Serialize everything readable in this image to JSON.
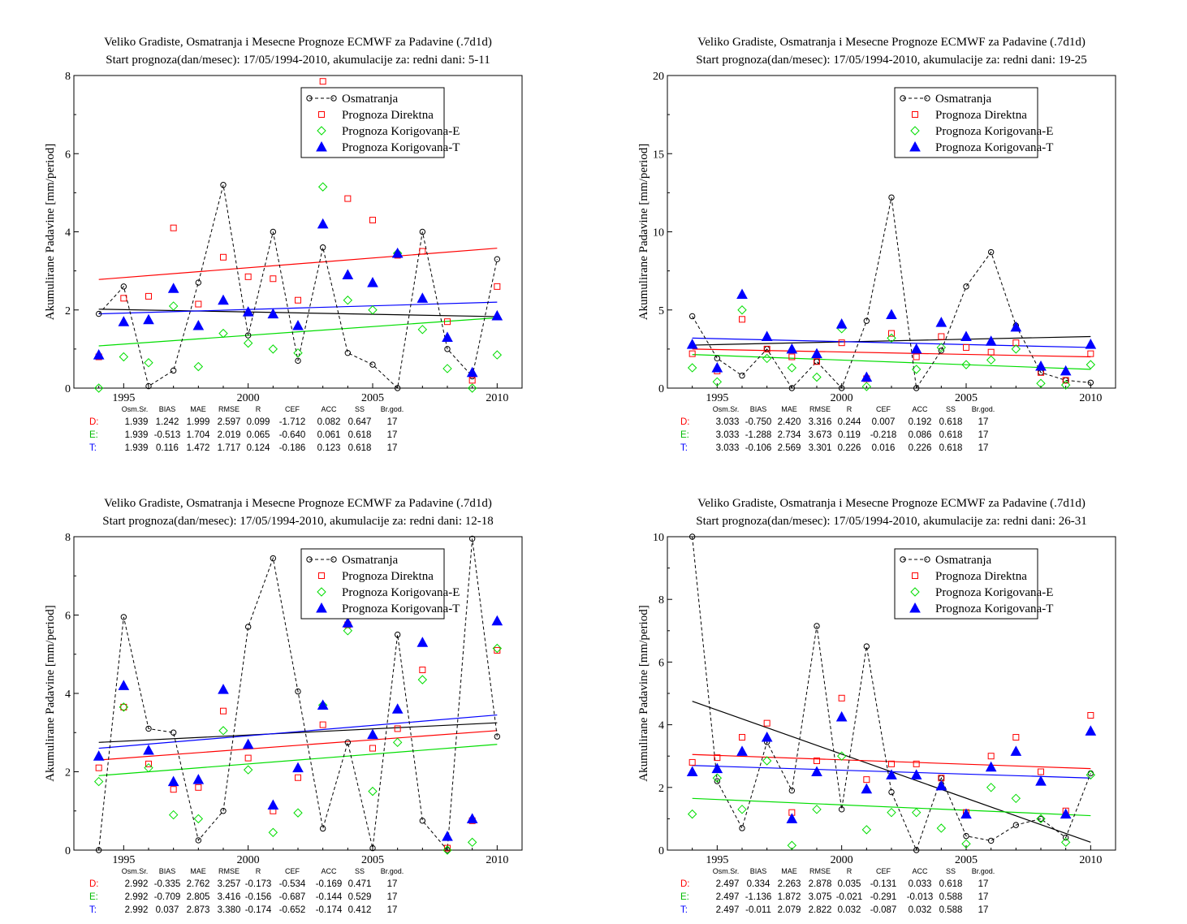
{
  "chart_data": [
    {
      "type": "line",
      "title": "Veliko Gradiste, Osmatranja i Mesecne Prognoze ECMWF za Padavine (.7d1d)",
      "subtitle": "Start prognoza(dan/mesec): 17/05/1994-2010, akumulacije za: redni dani: 5-11",
      "ylabel": "Akumulirane Padavine [mm/period]",
      "xlim": [
        1993,
        2011
      ],
      "ylim": [
        0,
        8
      ],
      "xticks": [
        1995,
        2000,
        2005,
        2010
      ],
      "yticks": [
        0,
        2,
        4,
        6,
        8
      ],
      "x": [
        1994,
        1995,
        1996,
        1997,
        1998,
        1999,
        2000,
        2001,
        2002,
        2003,
        2004,
        2005,
        2006,
        2007,
        2008,
        2009,
        2010
      ],
      "legend_position": "top-right",
      "series": [
        {
          "name": "Osmatranja",
          "marker": "circle",
          "color": "#000000",
          "values": [
            1.9,
            2.6,
            0.05,
            0.45,
            2.7,
            5.2,
            1.35,
            4.0,
            0.7,
            3.6,
            0.9,
            0.6,
            0.0,
            4.0,
            1.0,
            0.3,
            3.3
          ],
          "trend": [
            2.02,
            1.83
          ]
        },
        {
          "name": "Prognoza Direktna",
          "marker": "square",
          "color": "#ff0000",
          "values": [
            0.8,
            2.3,
            2.35,
            4.1,
            2.15,
            3.35,
            2.85,
            2.8,
            2.25,
            7.85,
            4.85,
            4.3,
            3.4,
            3.5,
            1.7,
            0.2,
            2.6
          ],
          "trend": [
            2.78,
            3.58
          ]
        },
        {
          "name": "Prognoza Korigovana-E",
          "marker": "diamond",
          "color": "#00dd00",
          "values": [
            0.0,
            0.8,
            0.65,
            2.1,
            0.55,
            1.4,
            1.15,
            1.0,
            0.9,
            5.15,
            2.25,
            2.0,
            3.45,
            1.5,
            0.5,
            0.0,
            0.85
          ],
          "trend": [
            1.08,
            1.8
          ]
        },
        {
          "name": "Prognoza Korigovana-T",
          "marker": "triangle",
          "color": "#0000ff",
          "values": [
            0.85,
            1.7,
            1.75,
            2.55,
            1.6,
            2.25,
            1.95,
            1.9,
            1.6,
            4.2,
            2.9,
            2.7,
            3.45,
            2.3,
            1.3,
            0.4,
            1.85
          ],
          "trend": [
            1.9,
            2.2
          ]
        }
      ],
      "stats": {
        "header": [
          "Osm.Sr.",
          "BIAS",
          "MAE",
          "RMSE",
          "R",
          "CEF",
          "ACC",
          "SS",
          "Br.god."
        ],
        "rows": [
          {
            "label": "D:",
            "color": "#ff0000",
            "values": [
              "1.939",
              "1.242",
              "1.999",
              "2.597",
              "0.099",
              "-1.712",
              "0.082",
              "0.647",
              "17"
            ]
          },
          {
            "label": "E:",
            "color": "#00bb00",
            "values": [
              "1.939",
              "-0.513",
              "1.704",
              "2.019",
              "0.065",
              "-0.640",
              "0.061",
              "0.618",
              "17"
            ]
          },
          {
            "label": "T:",
            "color": "#0000ff",
            "values": [
              "1.939",
              "0.116",
              "1.472",
              "1.717",
              "0.124",
              "-0.186",
              "0.123",
              "0.618",
              "17"
            ]
          }
        ]
      }
    },
    {
      "type": "line",
      "title": "Veliko Gradiste, Osmatranja i Mesecne Prognoze ECMWF za Padavine (.7d1d)",
      "subtitle": "Start prognoza(dan/mesec): 17/05/1994-2010, akumulacije za: redni dani: 19-25",
      "ylabel": "Akumulirane Padavine [mm/period]",
      "xlim": [
        1993,
        2011
      ],
      "ylim": [
        0,
        20
      ],
      "xticks": [
        1995,
        2000,
        2005,
        2010
      ],
      "yticks": [
        0,
        5,
        10,
        15,
        20
      ],
      "x": [
        1994,
        1995,
        1996,
        1997,
        1998,
        1999,
        2000,
        2001,
        2002,
        2003,
        2004,
        2005,
        2006,
        2007,
        2008,
        2009,
        2010
      ],
      "legend_position": "top-right",
      "series": [
        {
          "name": "Osmatranja",
          "marker": "circle",
          "color": "#000000",
          "values": [
            4.6,
            1.9,
            0.8,
            2.5,
            0.0,
            1.7,
            0.0,
            4.3,
            12.2,
            0.0,
            2.4,
            6.5,
            8.7,
            4.0,
            1.0,
            0.5,
            0.35
          ],
          "trend": [
            2.75,
            3.3
          ]
        },
        {
          "name": "Prognoza Direktna",
          "marker": "square",
          "color": "#ff0000",
          "values": [
            2.2,
            1.1,
            4.4,
            2.5,
            2.0,
            1.7,
            2.9,
            0.6,
            3.5,
            2.0,
            3.3,
            2.6,
            2.3,
            2.9,
            1.0,
            0.5,
            2.2
          ],
          "trend": [
            2.5,
            2.0
          ]
        },
        {
          "name": "Prognoza Korigovana-E",
          "marker": "diamond",
          "color": "#00dd00",
          "values": [
            1.3,
            0.4,
            5.0,
            1.9,
            1.3,
            0.7,
            3.8,
            0.1,
            3.2,
            1.2,
            2.6,
            1.5,
            1.8,
            2.5,
            0.3,
            0.2,
            1.5
          ],
          "trend": [
            2.15,
            1.2
          ]
        },
        {
          "name": "Prognoza Korigovana-T",
          "marker": "triangle",
          "color": "#0000ff",
          "values": [
            2.8,
            1.3,
            6.0,
            3.3,
            2.5,
            2.2,
            4.1,
            0.7,
            4.7,
            2.5,
            4.2,
            3.3,
            3.0,
            3.9,
            1.4,
            1.1,
            2.8
          ],
          "trend": [
            3.2,
            2.6
          ]
        }
      ],
      "stats": {
        "header": [
          "Osm.Sr.",
          "BIAS",
          "MAE",
          "RMSE",
          "R",
          "CEF",
          "ACC",
          "SS",
          "Br.god."
        ],
        "rows": [
          {
            "label": "D:",
            "color": "#ff0000",
            "values": [
              "3.033",
              "-0.750",
              "2.420",
              "3.316",
              "0.244",
              "0.007",
              "0.192",
              "0.618",
              "17"
            ]
          },
          {
            "label": "E:",
            "color": "#00bb00",
            "values": [
              "3.033",
              "-1.288",
              "2.734",
              "3.673",
              "0.119",
              "-0.218",
              "0.086",
              "0.618",
              "17"
            ]
          },
          {
            "label": "T:",
            "color": "#0000ff",
            "values": [
              "3.033",
              "-0.106",
              "2.569",
              "3.301",
              "0.226",
              "0.016",
              "0.226",
              "0.618",
              "17"
            ]
          }
        ]
      }
    },
    {
      "type": "line",
      "title": "Veliko Gradiste, Osmatranja i Mesecne Prognoze ECMWF za Padavine (.7d1d)",
      "subtitle": "Start prognoza(dan/mesec): 17/05/1994-2010, akumulacije za: redni dani: 12-18",
      "ylabel": "Akumulirane Padavine [mm/period]",
      "xlim": [
        1993,
        2011
      ],
      "ylim": [
        0,
        8
      ],
      "xticks": [
        1995,
        2000,
        2005,
        2010
      ],
      "yticks": [
        0,
        2,
        4,
        6,
        8
      ],
      "x": [
        1994,
        1995,
        1996,
        1997,
        1998,
        1999,
        2000,
        2001,
        2002,
        2003,
        2004,
        2005,
        2006,
        2007,
        2008,
        2009,
        2010
      ],
      "legend_position": "top-right",
      "series": [
        {
          "name": "Osmatranja",
          "marker": "circle",
          "color": "#000000",
          "values": [
            0.0,
            5.95,
            3.1,
            3.0,
            0.25,
            1.0,
            5.7,
            7.45,
            4.05,
            0.55,
            2.75,
            0.05,
            5.5,
            0.75,
            0.0,
            7.95,
            2.9
          ],
          "trend": [
            2.75,
            3.25
          ]
        },
        {
          "name": "Prognoza Direktna",
          "marker": "square",
          "color": "#ff0000",
          "values": [
            2.1,
            3.65,
            2.2,
            1.55,
            1.6,
            3.55,
            2.35,
            1.0,
            1.85,
            3.2,
            5.75,
            2.6,
            3.1,
            4.6,
            0.05,
            0.75,
            5.1
          ],
          "trend": [
            2.3,
            3.05
          ]
        },
        {
          "name": "Prognoza Korigovana-E",
          "marker": "diamond",
          "color": "#00dd00",
          "values": [
            1.75,
            3.65,
            2.1,
            0.9,
            0.8,
            3.05,
            2.05,
            0.45,
            0.95,
            3.7,
            5.6,
            1.5,
            2.75,
            4.35,
            0.0,
            0.2,
            5.15
          ],
          "trend": [
            1.9,
            2.7
          ]
        },
        {
          "name": "Prognoza Korigovana-T",
          "marker": "triangle",
          "color": "#0000ff",
          "values": [
            2.4,
            4.2,
            2.55,
            1.75,
            1.8,
            4.1,
            2.7,
            1.15,
            2.1,
            3.7,
            5.8,
            2.95,
            3.6,
            5.3,
            0.35,
            0.8,
            5.85
          ],
          "trend": [
            2.6,
            3.45
          ]
        }
      ],
      "stats": {
        "header": [
          "Osm.Sr.",
          "BIAS",
          "MAE",
          "RMSE",
          "R",
          "CEF",
          "ACC",
          "SS",
          "Br.god."
        ],
        "rows": [
          {
            "label": "D:",
            "color": "#ff0000",
            "values": [
              "2.992",
              "-0.335",
              "2.762",
              "3.257",
              "-0.173",
              "-0.534",
              "-0.169",
              "0.471",
              "17"
            ]
          },
          {
            "label": "E:",
            "color": "#00bb00",
            "values": [
              "2.992",
              "-0.709",
              "2.805",
              "3.416",
              "-0.156",
              "-0.687",
              "-0.144",
              "0.529",
              "17"
            ]
          },
          {
            "label": "T:",
            "color": "#0000ff",
            "values": [
              "2.992",
              "0.037",
              "2.873",
              "3.380",
              "-0.174",
              "-0.652",
              "-0.174",
              "0.412",
              "17"
            ]
          }
        ]
      }
    },
    {
      "type": "line",
      "title": "Veliko Gradiste, Osmatranja i Mesecne Prognoze ECMWF za Padavine (.7d1d)",
      "subtitle": "Start prognoza(dan/mesec): 17/05/1994-2010, akumulacije za: redni dani: 26-31",
      "ylabel": "Akumulirane Padavine [mm/period]",
      "xlim": [
        1993,
        2011
      ],
      "ylim": [
        0,
        10
      ],
      "xticks": [
        1995,
        2000,
        2005,
        2010
      ],
      "yticks": [
        0,
        2,
        4,
        6,
        8,
        10
      ],
      "x": [
        1994,
        1995,
        1996,
        1997,
        1998,
        1999,
        2000,
        2001,
        2002,
        2003,
        2004,
        2005,
        2006,
        2007,
        2008,
        2009,
        2010
      ],
      "legend_position": "top-right",
      "series": [
        {
          "name": "Osmatranja",
          "marker": "circle",
          "color": "#000000",
          "values": [
            10.0,
            2.2,
            0.7,
            3.45,
            1.9,
            7.15,
            1.3,
            6.5,
            1.85,
            0.0,
            2.3,
            0.45,
            0.3,
            0.8,
            1.0,
            0.4,
            2.45
          ],
          "trend": [
            4.75,
            0.25
          ]
        },
        {
          "name": "Prognoza Direktna",
          "marker": "square",
          "color": "#ff0000",
          "values": [
            2.8,
            2.95,
            3.6,
            4.05,
            1.2,
            2.85,
            4.85,
            2.25,
            2.75,
            2.75,
            2.3,
            1.2,
            3.0,
            3.6,
            2.5,
            1.25,
            4.3
          ],
          "trend": [
            3.05,
            2.6
          ]
        },
        {
          "name": "Prognoza Korigovana-E",
          "marker": "diamond",
          "color": "#00dd00",
          "values": [
            1.15,
            2.3,
            1.3,
            2.85,
            0.15,
            1.3,
            3.0,
            0.65,
            1.2,
            1.2,
            0.7,
            0.2,
            2.0,
            1.65,
            1.0,
            0.25,
            2.4
          ],
          "trend": [
            1.65,
            1.1
          ]
        },
        {
          "name": "Prognoza Korigovana-T",
          "marker": "triangle",
          "color": "#0000ff",
          "values": [
            2.5,
            2.6,
            3.15,
            3.6,
            1.0,
            2.5,
            4.25,
            1.95,
            2.4,
            2.4,
            2.05,
            1.15,
            2.65,
            3.15,
            2.2,
            1.15,
            3.8
          ],
          "trend": [
            2.7,
            2.3
          ]
        }
      ],
      "stats": {
        "header": [
          "Osm.Sr.",
          "BIAS",
          "MAE",
          "RMSE",
          "R",
          "CEF",
          "ACC",
          "SS",
          "Br.god."
        ],
        "rows": [
          {
            "label": "D:",
            "color": "#ff0000",
            "values": [
              "2.497",
              "0.334",
              "2.263",
              "2.878",
              "0.035",
              "-0.131",
              "0.033",
              "0.618",
              "17"
            ]
          },
          {
            "label": "E:",
            "color": "#00bb00",
            "values": [
              "2.497",
              "-1.136",
              "1.872",
              "3.075",
              "-0.021",
              "-0.291",
              "-0.013",
              "0.588",
              "17"
            ]
          },
          {
            "label": "T:",
            "color": "#0000ff",
            "values": [
              "2.497",
              "-0.011",
              "2.079",
              "2.822",
              "0.032",
              "-0.087",
              "0.032",
              "0.588",
              "17"
            ]
          }
        ]
      }
    }
  ]
}
